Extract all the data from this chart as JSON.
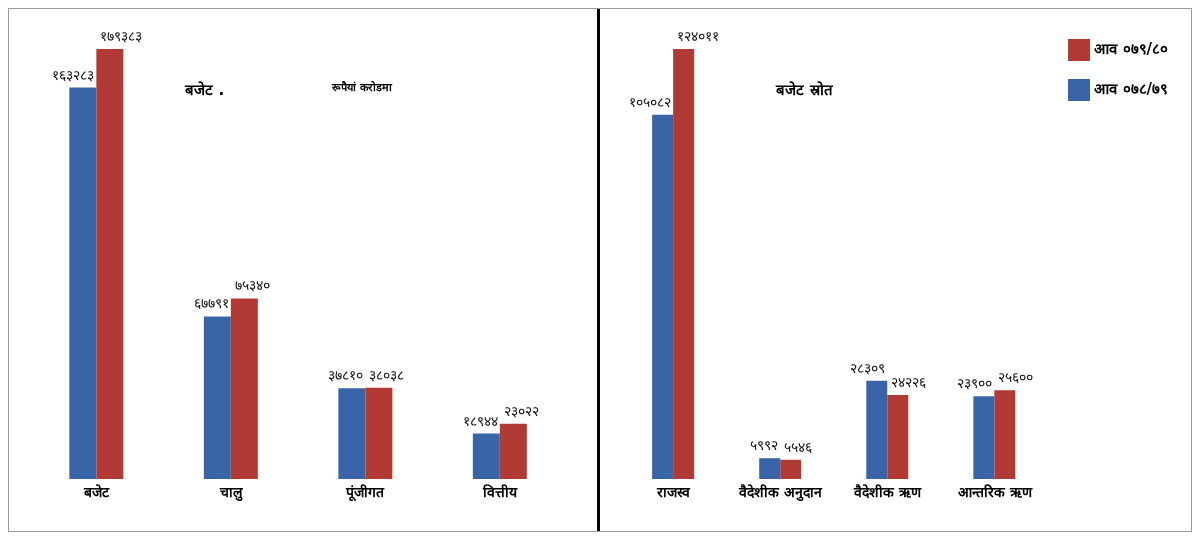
{
  "chart_data": [
    {
      "type": "bar",
      "title": "बजेट .",
      "subtitle": "रूपैयां करोडमा",
      "categories": [
        "बजेट",
        "चालु",
        "पूंजीगत",
        "वित्तीय"
      ],
      "legend": false,
      "series": [
        {
          "color": "#3a64a8",
          "values": [
            163283,
            67791,
            37810,
            18944
          ],
          "value_labels": [
            "१६३२८३",
            "६७७९१",
            "३७८१०",
            "१८९४४"
          ]
        },
        {
          "color": "#b23a34",
          "values": [
            179383,
            75340,
            38038,
            23022
          ],
          "value_labels": [
            "१७९३८३",
            "७५३४०",
            "३८०३८",
            "२३०२२"
          ]
        }
      ]
    },
    {
      "type": "bar",
      "title": "बजेट स्रोत",
      "categories": [
        "राजस्व",
        "वैदेशीक अनुदान",
        "वैदेशीक ऋण",
        "आन्तरिक ऋण"
      ],
      "legend": "top right",
      "series": [
        {
          "name": "आव ०७८/७९",
          "color": "#3a64a8",
          "values": [
            105082,
            5992,
            28309,
            23900
          ],
          "value_labels": [
            "१०५०८२",
            "५९९२",
            "२८३०९",
            "२३९००"
          ]
        },
        {
          "name": "आव ०७९/८०",
          "color": "#b23a34",
          "values": [
            124011,
            5546,
            24226,
            25600
          ],
          "value_labels": [
            "१२४०११",
            "५५४६",
            "२४२२६",
            "२५६००"
          ]
        }
      ]
    }
  ]
}
